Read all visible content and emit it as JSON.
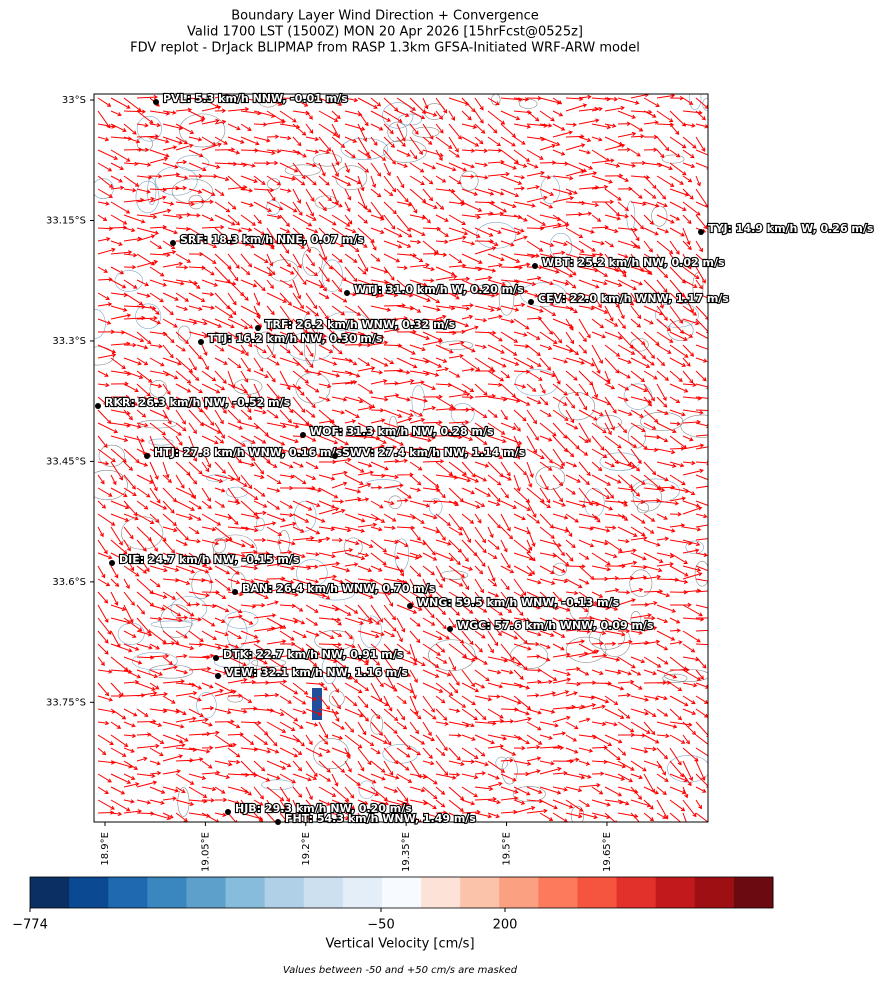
{
  "map_data": {
    "title": [
      "Boundary Layer Wind Direction + Convergence",
      "Valid 1700 LST (1500Z) MON 20 Apr 2026 [15hrFcst@0525z]",
      "FDV replot - DrJack BLIPMAP from RASP 1.3km GFSA-Initiated WRF-ARW model"
    ],
    "xlim": [
      18.8836,
      19.801
    ],
    "ylim": [
      -33.899,
      -32.9925
    ],
    "xticks": [
      {
        "value": 18.9,
        "label": "18.9°E"
      },
      {
        "value": 19.05,
        "label": "19.05°E"
      },
      {
        "value": 19.2,
        "label": "19.2°E"
      },
      {
        "value": 19.35,
        "label": "19.35°E"
      },
      {
        "value": 19.5,
        "label": "19.5°E"
      },
      {
        "value": 19.65,
        "label": "19.65°E"
      }
    ],
    "yticks": [
      {
        "value": -33,
        "label": "33°S"
      },
      {
        "value": -33.15,
        "label": "33.15°S"
      },
      {
        "value": -33.3,
        "label": "33.3°S"
      },
      {
        "value": -33.45,
        "label": "33.45°S"
      },
      {
        "value": -33.6,
        "label": "33.6°S"
      },
      {
        "value": -33.75,
        "label": "33.75°S"
      }
    ],
    "vector_color": "#ff0000",
    "stations": [
      "PVL: 5.3 km/h NNW, -0.01 m/s",
      "TYJ: 14.9 km/h W, 0.26 m/s",
      "SRF: 18.3 km/h NNE, 0.07 m/s",
      "WBT: 25.2 km/h NW, 0.02 m/s",
      "WTJ: 31.0 km/h W, 0.20 m/s",
      "CEV: 22.0 km/h WNW, 1.17 m/s",
      "TRF: 26.2 km/h WNW, 0.32 m/s",
      "TTJ: 16.2 km/h NW, 0.30 m/s",
      "RKR: 26.3 km/h NW, -0.52 m/s",
      "WOF: 31.3 km/h NW, 0.28 m/s",
      "HTJ: 27.8 km/h WNW, 0.16 m/s",
      "SWV: 27.4 km/h NW, 1.14 m/s",
      "DIE: 24.7 km/h NW, -0.15 m/s",
      "BAN: 26.4 km/h WNW, 0.70 m/s",
      "WNG: 59.5 km/h WNW, -0.13 m/s",
      "WGC: 57.6 km/h WNW, 0.09 m/s",
      "DTK: 22.7 km/h NW, 0.91 m/s",
      "VEW: 32.1 km/h NW, 1.16 m/s",
      "HJB: 29.3 km/h NW, 0.20 m/s",
      "FHT: 54.3 km/h WNW, 1.49 m/s"
    ],
    "colorbar": {
      "colors": [
        "#0a2f62",
        "#0b4a93",
        "#1f69b0",
        "#3a86bf",
        "#5ea0cc",
        "#87bcdc",
        "#afd0e6",
        "#cde0ef",
        "#e3eef8",
        "#f7fbff",
        "#fde2d8",
        "#fcc3ab",
        "#fca082",
        "#fb7b5c",
        "#f5553f",
        "#e2302a",
        "#c1191c",
        "#9e0f14",
        "#6c0a12"
      ],
      "ticks": [
        {
          "value": -774,
          "label": "−774"
        },
        {
          "value": -50,
          "label": "−50"
        },
        {
          "value": 200,
          "label": "200"
        }
      ],
      "label": "Vertical Velocity [cm/s]",
      "note": "Values between -50 and +50 cm/s are masked"
    }
  }
}
